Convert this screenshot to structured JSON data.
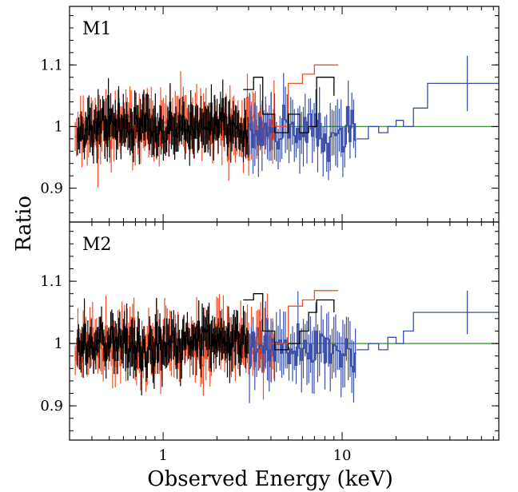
{
  "chart_data": {
    "type": "line",
    "xlabel": "Observed Energy (keV)",
    "ylabel": "Ratio",
    "x_scale": "log",
    "xlim": [
      0.3,
      75
    ],
    "x_ticks": [
      1,
      10
    ],
    "x_tick_labels": [
      "1",
      "10"
    ],
    "y_ticks": [
      0.9,
      1,
      1.1
    ],
    "y_tick_labels": [
      "0.9",
      "1",
      "1.1"
    ],
    "colors": {
      "red": "#f0502a",
      "black": "#000000",
      "blue": "#3a4fa8",
      "green": "#3a9a3a"
    },
    "panels": [
      {
        "label": "M1",
        "ylim": [
          0.845,
          1.195
        ],
        "model_line": 1.0,
        "red_step": {
          "x": [
            4.0,
            5.0,
            6.0,
            7.0,
            8.0,
            9.5
          ],
          "y": [
            1.0,
            1.07,
            1.085,
            1.1,
            1.1,
            1.1
          ]
        },
        "black_step": {
          "x": [
            2.8,
            3.2,
            3.6,
            4.2,
            5.0,
            5.8,
            6.5,
            7.2,
            8.0,
            9.0
          ],
          "y": [
            1.06,
            1.08,
            1.02,
            0.99,
            1.02,
            0.99,
            1.0,
            1.08,
            1.08,
            1.05
          ]
        },
        "blue_step": {
          "x": [
            12,
            14,
            16,
            18,
            20,
            22,
            25,
            30,
            40,
            75
          ],
          "y": [
            0.98,
            1.0,
            0.99,
            1.0,
            1.01,
            1.0,
            1.03,
            1.07,
            1.07,
            1.07
          ]
        },
        "blue_last_point": {
          "x": 50,
          "y": 1.07,
          "yerr": 0.045
        }
      },
      {
        "label": "M2",
        "ylim": [
          0.845,
          1.195
        ],
        "model_line": 1.0,
        "red_step": {
          "x": [
            4.0,
            5.0,
            6.0,
            7.0,
            8.0,
            9.5
          ],
          "y": [
            1.0,
            1.06,
            1.07,
            1.085,
            1.085,
            1.085
          ]
        },
        "black_step": {
          "x": [
            2.8,
            3.2,
            3.6,
            4.2,
            5.0,
            5.8,
            6.5,
            7.2,
            8.0,
            9.0
          ],
          "y": [
            1.07,
            1.08,
            1.02,
            0.99,
            1.0,
            1.02,
            1.05,
            1.07,
            1.07,
            1.05
          ]
        },
        "blue_step": {
          "x": [
            12,
            14,
            16,
            18,
            20,
            22,
            25,
            30,
            40,
            75
          ],
          "y": [
            0.99,
            1.0,
            0.99,
            1.01,
            1.0,
            1.02,
            1.05,
            1.05,
            1.05,
            1.05
          ]
        },
        "blue_last_point": {
          "x": 50,
          "y": 1.05,
          "yerr": 0.035
        }
      }
    ]
  }
}
